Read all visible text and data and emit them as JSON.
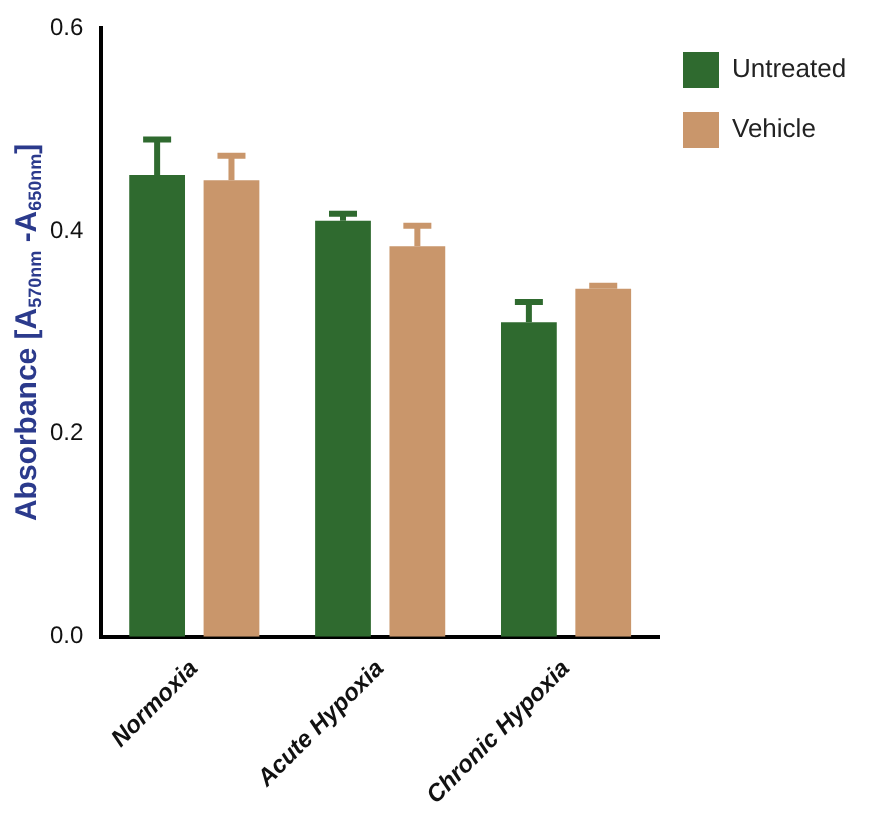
{
  "chart_data": {
    "type": "bar",
    "ylabel": "Absorbance [A$_{570nm}$ -A$_{650nm}$]",
    "categories": [
      "Normoxia",
      "Acute Hypoxia",
      "Chronic Hypoxia"
    ],
    "series": [
      {
        "name": "Untreated",
        "color": "#2f6a2f",
        "values": [
          0.455,
          0.41,
          0.31
        ],
        "errors": [
          0.035,
          0.007,
          0.02
        ]
      },
      {
        "name": "Vehicle",
        "color": "#c9966b",
        "values": [
          0.45,
          0.385,
          0.343
        ],
        "errors": [
          0.024,
          0.02,
          0.003
        ]
      }
    ],
    "ylim": [
      0,
      0.6
    ],
    "yticks": [
      {
        "value": 0,
        "label": "0.0"
      },
      {
        "value": 0.2,
        "label": "0.2"
      },
      {
        "value": 0.4,
        "label": "0.4"
      },
      {
        "value": 0.6,
        "label": "0.6"
      }
    ],
    "grid": false,
    "legend": "top right"
  }
}
